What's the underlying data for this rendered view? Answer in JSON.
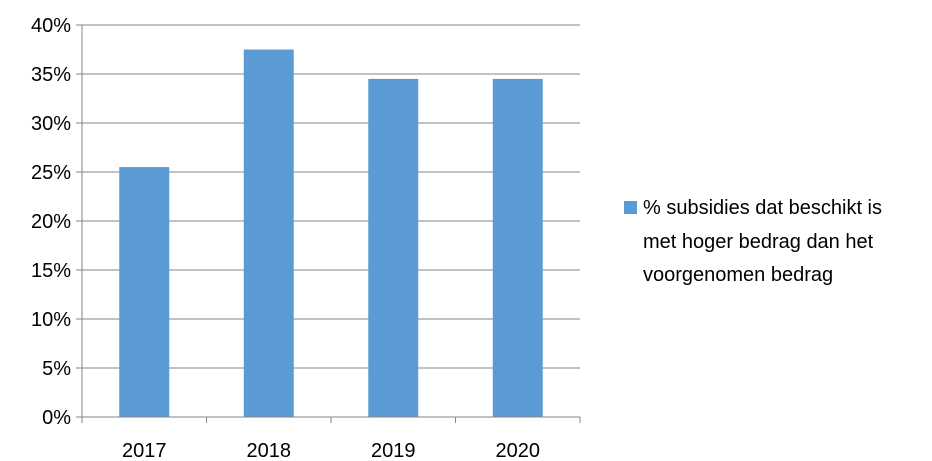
{
  "chart_data": {
    "type": "bar",
    "title": "",
    "xlabel": "",
    "ylabel": "",
    "categories": [
      "2017",
      "2018",
      "2019",
      "2020"
    ],
    "series": [
      {
        "name": "% subsidies dat beschikt is met hoger bedrag dan het voorgenomen bedrag",
        "values": [
          0.255,
          0.375,
          0.345,
          0.345
        ],
        "color": "#5B9BD5"
      }
    ],
    "ylim": [
      0,
      0.4
    ],
    "ytick_labels": [
      "0%",
      "5%",
      "10%",
      "15%",
      "20%",
      "25%",
      "30%",
      "35%",
      "40%"
    ],
    "grid": true,
    "legend_position": "right",
    "legend_lines": [
      "% subsidies dat beschikt is",
      "met hoger bedrag dan het",
      "voorgenomen bedrag"
    ]
  }
}
